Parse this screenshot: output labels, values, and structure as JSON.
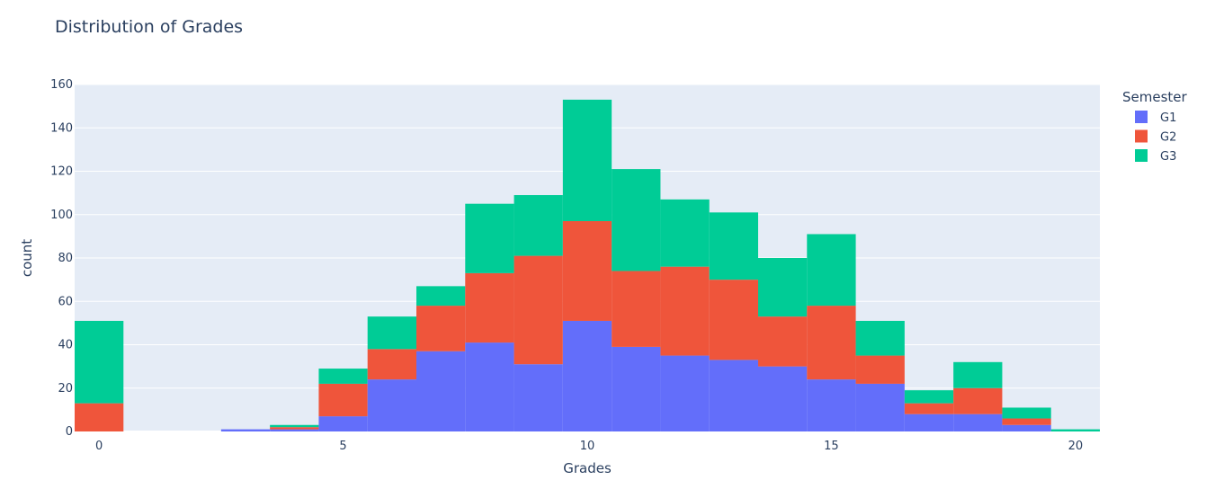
{
  "chart_data": {
    "type": "bar",
    "subtype": "stacked-histogram",
    "title": "Distribution of Grades",
    "xlabel": "Grades",
    "ylabel": "count",
    "x": [
      0,
      1,
      2,
      3,
      4,
      5,
      6,
      7,
      8,
      9,
      10,
      11,
      12,
      13,
      14,
      15,
      16,
      17,
      18,
      19,
      20
    ],
    "xlim": [
      -0.5,
      20.5
    ],
    "ylim": [
      0,
      160
    ],
    "xticks": [
      "0",
      "5",
      "10",
      "15",
      "20"
    ],
    "yticks": [
      "0",
      "20",
      "40",
      "60",
      "80",
      "100",
      "120",
      "140",
      "160"
    ],
    "xtick_values": [
      0,
      5,
      10,
      15,
      20
    ],
    "ytick_values": [
      0,
      20,
      40,
      60,
      80,
      100,
      120,
      140,
      160
    ],
    "grid": true,
    "legend_title": "Semester",
    "legend_position": "top-right",
    "series": [
      {
        "name": "G1",
        "color": "#636efa",
        "values": [
          0,
          0,
          0,
          1,
          1,
          7,
          24,
          37,
          41,
          31,
          51,
          39,
          35,
          33,
          30,
          24,
          22,
          8,
          8,
          3,
          0
        ]
      },
      {
        "name": "G2",
        "color": "#ef553b",
        "values": [
          13,
          0,
          0,
          0,
          1,
          15,
          14,
          21,
          32,
          50,
          46,
          35,
          41,
          37,
          23,
          34,
          13,
          5,
          12,
          3,
          0
        ]
      },
      {
        "name": "G3",
        "color": "#00cc96",
        "values": [
          38,
          0,
          0,
          0,
          1,
          7,
          15,
          9,
          32,
          28,
          56,
          47,
          31,
          31,
          27,
          33,
          16,
          6,
          12,
          5,
          1
        ]
      }
    ]
  }
}
